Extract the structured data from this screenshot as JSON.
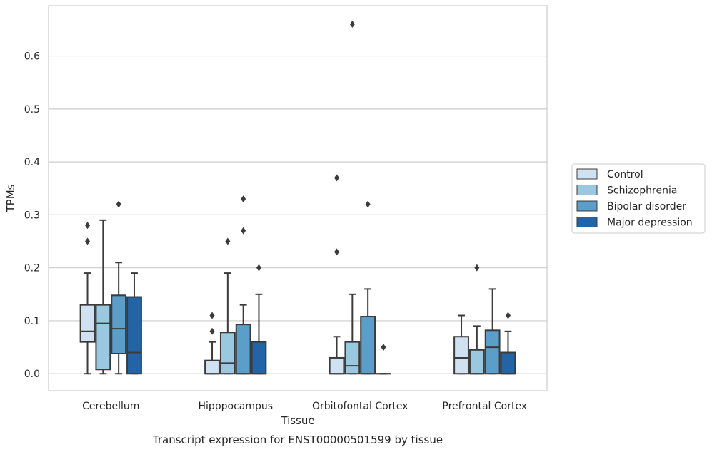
{
  "chart_data": {
    "type": "box",
    "xlabel": "Tissue",
    "ylabel": "TPMs",
    "caption": "Transcript expression for ENST00000501599 by tissue",
    "ylim": [
      -0.032,
      0.695
    ],
    "yticks": [
      "0.0",
      "0.1",
      "0.2",
      "0.3",
      "0.4",
      "0.5",
      "0.6"
    ],
    "ytick_values": [
      0.0,
      0.1,
      0.2,
      0.3,
      0.4,
      0.5,
      0.6
    ],
    "grid": "horizontal",
    "legend_position": "right",
    "categories": [
      "Cerebellum",
      "Hipppocampus",
      "Orbitofontal Cortex",
      "Prefrontal Cortex"
    ],
    "series": [
      {
        "name": "Control",
        "color": "#d0e2f2",
        "boxes": [
          {
            "q1": 0.06,
            "median": 0.08,
            "q3": 0.13,
            "whislo": 0.0,
            "whishi": 0.19,
            "fliers": [
              0.25,
              0.28
            ]
          },
          {
            "q1": 0.0,
            "median": 0.0,
            "q3": 0.025,
            "whislo": 0.0,
            "whishi": 0.06,
            "fliers": [
              0.08,
              0.11
            ]
          },
          {
            "q1": 0.0,
            "median": 0.0,
            "q3": 0.03,
            "whislo": 0.0,
            "whishi": 0.07,
            "fliers": [
              0.23,
              0.37
            ]
          },
          {
            "q1": 0.0,
            "median": 0.03,
            "q3": 0.07,
            "whislo": 0.0,
            "whishi": 0.11,
            "fliers": []
          }
        ]
      },
      {
        "name": "Schizophrenia",
        "color": "#9ac8e0",
        "boxes": [
          {
            "q1": 0.008,
            "median": 0.095,
            "q3": 0.13,
            "whislo": 0.0,
            "whishi": 0.29,
            "fliers": []
          },
          {
            "q1": 0.0,
            "median": 0.02,
            "q3": 0.078,
            "whislo": 0.0,
            "whishi": 0.19,
            "fliers": [
              0.25
            ]
          },
          {
            "q1": 0.0,
            "median": 0.015,
            "q3": 0.06,
            "whislo": 0.0,
            "whishi": 0.15,
            "fliers": [
              0.66
            ]
          },
          {
            "q1": 0.0,
            "median": 0.0,
            "q3": 0.045,
            "whislo": 0.0,
            "whishi": 0.09,
            "fliers": [
              0.2
            ]
          }
        ]
      },
      {
        "name": "Bipolar disorder",
        "color": "#5a9ec9",
        "boxes": [
          {
            "q1": 0.038,
            "median": 0.085,
            "q3": 0.148,
            "whislo": 0.0,
            "whishi": 0.21,
            "fliers": [
              0.32
            ]
          },
          {
            "q1": 0.0,
            "median": 0.0,
            "q3": 0.093,
            "whislo": 0.0,
            "whishi": 0.13,
            "fliers": [
              0.27,
              0.33
            ]
          },
          {
            "q1": 0.0,
            "median": 0.0,
            "q3": 0.108,
            "whislo": 0.0,
            "whishi": 0.16,
            "fliers": [
              0.32
            ]
          },
          {
            "q1": 0.0,
            "median": 0.05,
            "q3": 0.082,
            "whislo": 0.0,
            "whishi": 0.16,
            "fliers": []
          }
        ]
      },
      {
        "name": "Major depression",
        "color": "#2264a6",
        "boxes": [
          {
            "q1": 0.0,
            "median": 0.04,
            "q3": 0.145,
            "whislo": 0.0,
            "whishi": 0.19,
            "fliers": []
          },
          {
            "q1": 0.0,
            "median": 0.0,
            "q3": 0.06,
            "whislo": 0.0,
            "whishi": 0.15,
            "fliers": [
              0.2
            ]
          },
          {
            "q1": 0.0,
            "median": 0.0,
            "q3": 0.0,
            "whislo": 0.0,
            "whishi": 0.0,
            "fliers": [
              0.05
            ]
          },
          {
            "q1": 0.0,
            "median": 0.0,
            "q3": 0.04,
            "whislo": 0.0,
            "whishi": 0.08,
            "fliers": [
              0.11
            ]
          }
        ]
      }
    ]
  }
}
